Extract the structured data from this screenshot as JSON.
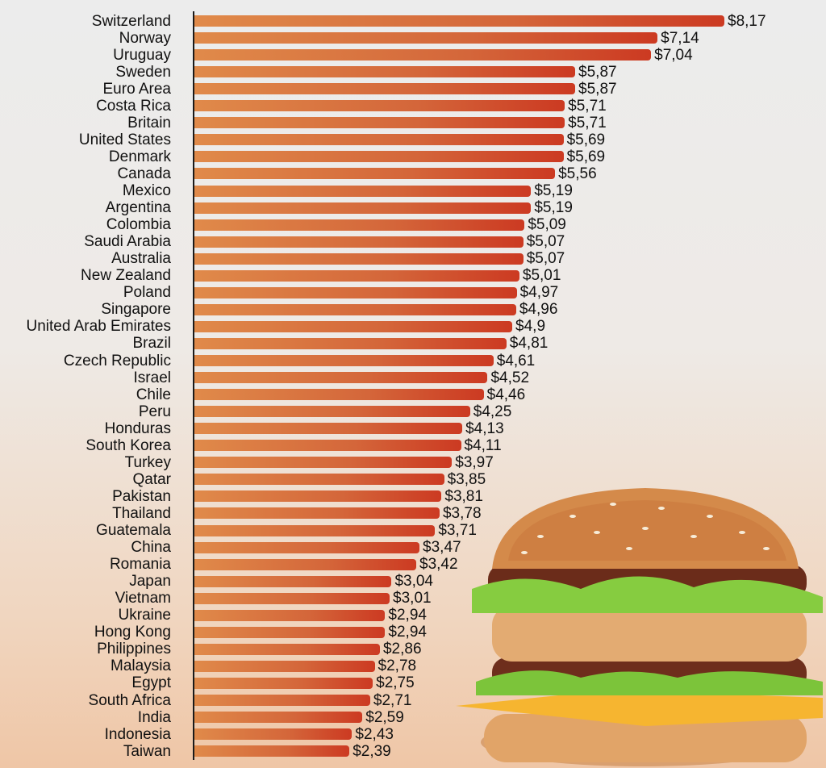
{
  "chart_data": {
    "type": "bar",
    "orientation": "horizontal",
    "title": "",
    "xlabel": "",
    "ylabel": "",
    "xlim": [
      0,
      8.17
    ],
    "grid": false,
    "categories": [
      "Switzerland",
      "Norway",
      "Uruguay",
      "Sweden",
      "Euro Area",
      "Costa Rica",
      "Britain",
      "United States",
      "Denmark",
      "Canada",
      "Mexico",
      "Argentina",
      "Colombia",
      "Saudi Arabia",
      "Australia",
      "New Zealand",
      "Poland",
      "Singapore",
      "United Arab Emirates",
      "Brazil",
      "Czech Republic",
      "Israel",
      "Chile",
      "Peru",
      "Honduras",
      "South Korea",
      "Turkey",
      "Qatar",
      "Pakistan",
      "Thailand",
      "Guatemala",
      "China",
      "Romania",
      "Japan",
      "Vietnam",
      "Ukraine",
      "Hong Kong",
      "Philippines",
      "Malaysia",
      "Egypt",
      "South Africa",
      "India",
      "Indonesia",
      "Taiwan"
    ],
    "values": [
      8.17,
      7.14,
      7.04,
      5.87,
      5.87,
      5.71,
      5.71,
      5.69,
      5.69,
      5.56,
      5.19,
      5.19,
      5.09,
      5.07,
      5.07,
      5.01,
      4.97,
      4.96,
      4.9,
      4.81,
      4.61,
      4.52,
      4.46,
      4.25,
      4.13,
      4.11,
      3.97,
      3.85,
      3.81,
      3.78,
      3.71,
      3.47,
      3.42,
      3.04,
      3.01,
      2.94,
      2.94,
      2.86,
      2.78,
      2.75,
      2.71,
      2.59,
      2.43,
      2.39
    ],
    "data_labels": [
      "$8,17",
      "$7,14",
      "$7,04",
      "$5,87",
      "$5,87",
      "$5,71",
      "$5,71",
      "$5,69",
      "$5,69",
      "$5,56",
      "$5,19",
      "$5,19",
      "$5,09",
      "$5,07",
      "$5,07",
      "$5,01",
      "$4,97",
      "$4,96",
      "$4,9",
      "$4,81",
      "$4,61",
      "$4,52",
      "$4,46",
      "$4,25",
      "$4,13",
      "$4,11",
      "$3,97",
      "$3,85",
      "$3,81",
      "$3,78",
      "$3,71",
      "$3,47",
      "$3,42",
      "$3,04",
      "$3,01",
      "$2,94",
      "$2,94",
      "$2,86",
      "$2,78",
      "$2,75",
      "$2,71",
      "$2,59",
      "$2,43",
      "$2,39"
    ],
    "colors": {
      "bar_start": "#e08a4a",
      "bar_end": "#cc3a22",
      "axis": "#1a1a1a"
    }
  }
}
